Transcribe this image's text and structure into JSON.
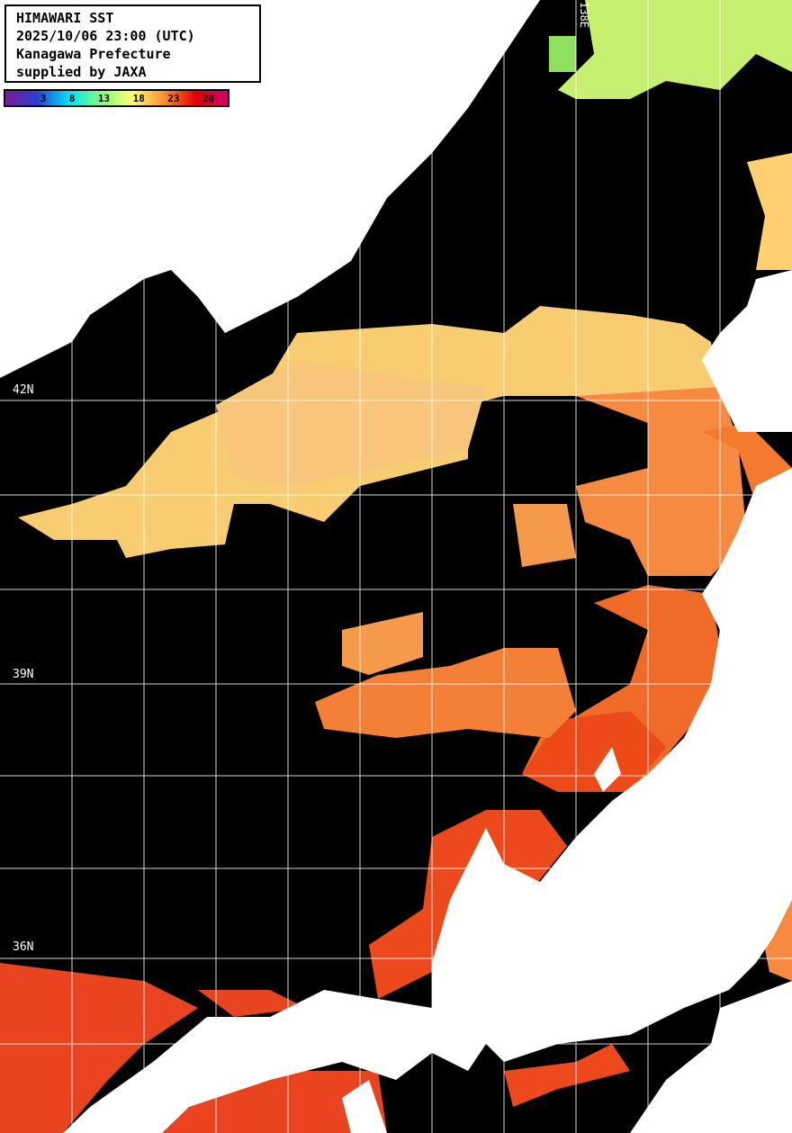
{
  "header": {
    "title": "HIMAWARI SST",
    "datetime": "2025/10/06 23:00 (UTC)",
    "region": "Kanagawa Prefecture",
    "credit": "supplied by JAXA"
  },
  "colorbar": {
    "ticks": [
      "3",
      "8",
      "13",
      "18",
      "23",
      "28"
    ],
    "gradient": [
      "#7a1a9a",
      "#2a40d0",
      "#00e0ff",
      "#80ff80",
      "#ffff70",
      "#ff9030",
      "#e00000",
      "#d0006a"
    ]
  },
  "grid": {
    "lat_labels": [
      "42N",
      "39N",
      "36N"
    ],
    "lon_labels": [
      "138E"
    ]
  },
  "colors": {
    "land": "#ffffff",
    "no_data": "#000000",
    "grid": "#ffffff"
  }
}
